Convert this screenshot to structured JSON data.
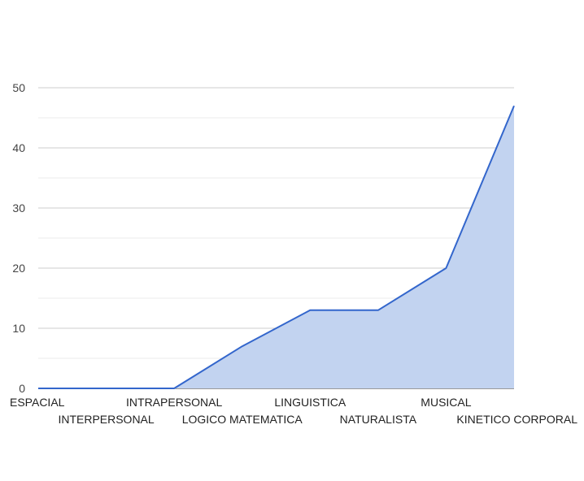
{
  "chart_data": {
    "type": "area",
    "title": "",
    "xlabel": "",
    "ylabel": "",
    "categories": [
      "ESPACIAL",
      "INTERPERSONAL",
      "INTRAPERSONAL",
      "LOGICO MATEMATICA",
      "LINGUISTICA",
      "NATURALISTA",
      "MUSICAL",
      "KINETICO CORPORAL"
    ],
    "series": [
      {
        "values": [
          0,
          0,
          0,
          7,
          13,
          13,
          20,
          47
        ]
      }
    ],
    "ylim": [
      0,
      50
    ],
    "yticks": [
      0,
      10,
      20,
      30,
      40,
      50
    ],
    "grid": true,
    "legend": "none",
    "colors": {
      "line": "#3366cc",
      "fill": "#c2d3f0",
      "major_grid": "#cccccc",
      "minor_grid": "#ebebeb"
    }
  }
}
